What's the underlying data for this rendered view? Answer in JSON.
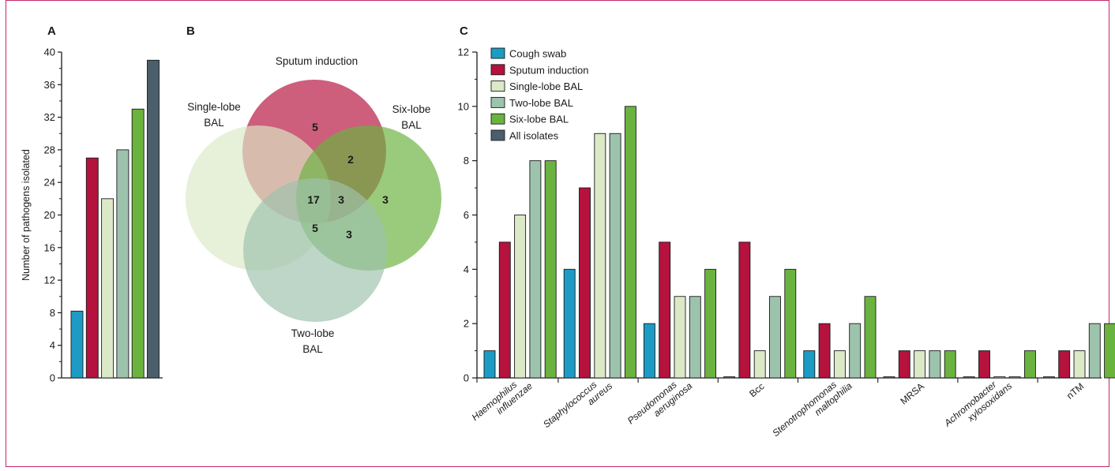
{
  "colors": {
    "frame": "#c0266b",
    "cough_swab": "#1c9cc4",
    "sputum_induction": "#b5123e",
    "single_lobe_bal": "#dbe9c6",
    "two_lobe_bal": "#9dc3ad",
    "six_lobe_bal": "#6ab33f",
    "all_isolates": "#4a5f6b"
  },
  "panels": {
    "a_label": "A",
    "b_label": "B",
    "c_label": "C"
  },
  "chart_data": [
    {
      "panel": "A",
      "type": "bar",
      "ylabel": "Number of pathogens isolated",
      "xlabel": "",
      "ylim": [
        0,
        40
      ],
      "yticks": [
        0,
        4,
        8,
        12,
        16,
        20,
        24,
        28,
        32,
        36,
        40
      ],
      "series": [
        {
          "name": "Cough swab",
          "value": 8.2,
          "color_key": "cough_swab"
        },
        {
          "name": "Sputum induction",
          "value": 27,
          "color_key": "sputum_induction"
        },
        {
          "name": "Single-lobe BAL",
          "value": 22,
          "color_key": "single_lobe_bal"
        },
        {
          "name": "Two-lobe BAL",
          "value": 28,
          "color_key": "two_lobe_bal"
        },
        {
          "name": "Six-lobe BAL",
          "value": 33,
          "color_key": "six_lobe_bal"
        },
        {
          "name": "All isolates",
          "value": 39,
          "color_key": "all_isolates"
        }
      ]
    },
    {
      "panel": "B",
      "type": "venn",
      "sets": [
        {
          "name": "Sputum induction",
          "label_lines": [
            "Sputum induction"
          ],
          "color_key": "sputum_induction"
        },
        {
          "name": "Single-lobe BAL",
          "label_lines": [
            "Single-lobe",
            "BAL"
          ],
          "color_key": "single_lobe_bal"
        },
        {
          "name": "Six-lobe BAL",
          "label_lines": [
            "Six-lobe",
            "BAL"
          ],
          "color_key": "six_lobe_bal"
        },
        {
          "name": "Two-lobe BAL",
          "label_lines": [
            "Two-lobe",
            "BAL"
          ],
          "color_key": "two_lobe_bal"
        }
      ],
      "region_counts": [
        {
          "region": "Sputum induction only",
          "value": 5
        },
        {
          "region": "Sputum induction + Six-lobe BAL",
          "value": 2
        },
        {
          "region": "All four",
          "value": 17
        },
        {
          "region": "Six-lobe BAL + Two-lobe BAL + Single-lobe BAL",
          "value": 3
        },
        {
          "region": "Six-lobe BAL only",
          "value": 3
        },
        {
          "region": "Single-lobe BAL + Two-lobe BAL",
          "value": 5
        },
        {
          "region": "Two-lobe BAL + Six-lobe BAL",
          "value": 3
        }
      ]
    },
    {
      "panel": "C",
      "type": "bar",
      "xlabel": "",
      "ylabel": "",
      "ylim": [
        0,
        12
      ],
      "yticks": [
        0,
        2,
        4,
        6,
        8,
        10,
        12
      ],
      "legend_position": "top-left",
      "legend": [
        {
          "name": "Cough swab",
          "color_key": "cough_swab"
        },
        {
          "name": "Sputum induction",
          "color_key": "sputum_induction"
        },
        {
          "name": "Single-lobe BAL",
          "color_key": "single_lobe_bal"
        },
        {
          "name": "Two-lobe BAL",
          "color_key": "two_lobe_bal"
        },
        {
          "name": "Six-lobe BAL",
          "color_key": "six_lobe_bal"
        },
        {
          "name": "All isolates",
          "color_key": "all_isolates"
        }
      ],
      "categories": [
        {
          "lines": [
            "Haemophilus",
            "influenzae"
          ],
          "italic": true
        },
        {
          "lines": [
            "Staphylococcus",
            "aureus"
          ],
          "italic": true
        },
        {
          "lines": [
            "Pseudomonas",
            "aeruginosa"
          ],
          "italic": true
        },
        {
          "lines": [
            "Bcc"
          ],
          "italic": false
        },
        {
          "lines": [
            "Stenotrophomonas",
            "maltophilia"
          ],
          "italic": true
        },
        {
          "lines": [
            "MRSA"
          ],
          "italic": false
        },
        {
          "lines": [
            "Achromobacter",
            "xylosoxidans"
          ],
          "italic": true
        },
        {
          "lines": [
            "nTM"
          ],
          "italic": false
        }
      ],
      "series": [
        {
          "name": "Cough swab",
          "color_key": "cough_swab",
          "values": [
            1,
            4,
            2,
            0,
            1,
            0,
            0,
            0
          ]
        },
        {
          "name": "Sputum induction",
          "color_key": "sputum_induction",
          "values": [
            5,
            7,
            5,
            5,
            2,
            1,
            1,
            1
          ]
        },
        {
          "name": "Single-lobe BAL",
          "color_key": "single_lobe_bal",
          "values": [
            6,
            9,
            3,
            1,
            1,
            1,
            0,
            1
          ]
        },
        {
          "name": "Two-lobe BAL",
          "color_key": "two_lobe_bal",
          "values": [
            8,
            9,
            3,
            3,
            2,
            1,
            0,
            2
          ]
        },
        {
          "name": "Six-lobe BAL",
          "color_key": "six_lobe_bal",
          "values": [
            8,
            10,
            4,
            4,
            3,
            1,
            1,
            2
          ]
        }
      ]
    }
  ]
}
